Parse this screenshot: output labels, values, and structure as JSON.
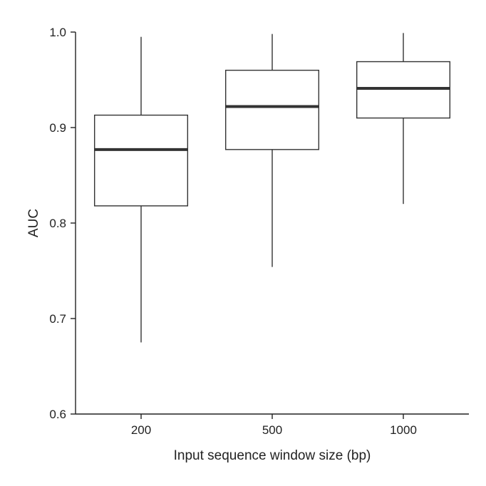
{
  "chart_data": {
    "type": "box",
    "title": "",
    "xlabel": "Input sequence window size (bp)",
    "ylabel": "AUC",
    "categories": [
      "200",
      "500",
      "1000"
    ],
    "ylim": [
      0.6,
      1.0
    ],
    "yticks": [
      0.6,
      0.7,
      0.8,
      0.9,
      1.0
    ],
    "ytick_labels": [
      "0.6",
      "0.7",
      "0.8",
      "0.9",
      "1.0"
    ],
    "grid": false,
    "boxes": [
      {
        "category": "200",
        "whisker_low": 0.675,
        "q1": 0.818,
        "median": 0.877,
        "q3": 0.913,
        "whisker_high": 0.995
      },
      {
        "category": "500",
        "whisker_low": 0.754,
        "q1": 0.877,
        "median": 0.922,
        "q3": 0.96,
        "whisker_high": 0.998
      },
      {
        "category": "1000",
        "whisker_low": 0.82,
        "q1": 0.91,
        "median": 0.941,
        "q3": 0.969,
        "whisker_high": 0.999
      }
    ],
    "colors": {
      "axis": "#222222",
      "box_stroke": "#333333",
      "box_fill": "#ffffff",
      "median": "#333333"
    }
  }
}
